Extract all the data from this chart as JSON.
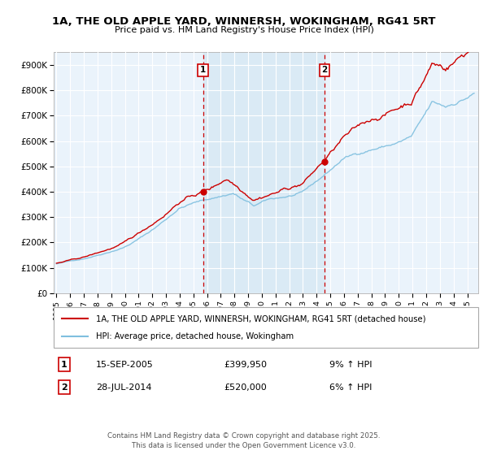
{
  "title": "1A, THE OLD APPLE YARD, WINNERSH, WOKINGHAM, RG41 5RT",
  "subtitle": "Price paid vs. HM Land Registry's House Price Index (HPI)",
  "legend_line1": "1A, THE OLD APPLE YARD, WINNERSH, WOKINGHAM, RG41 5RT (detached house)",
  "legend_line2": "HPI: Average price, detached house, Wokingham",
  "sale1_date": "15-SEP-2005",
  "sale1_price": 399950,
  "sale1_label": "9% ↑ HPI",
  "sale2_date": "28-JUL-2014",
  "sale2_price": 520000,
  "sale2_label": "6% ↑ HPI",
  "sale1_x": 2005.71,
  "sale2_x": 2014.57,
  "yticks": [
    0,
    100000,
    200000,
    300000,
    400000,
    500000,
    600000,
    700000,
    800000,
    900000
  ],
  "ytick_labels": [
    "£0",
    "£100K",
    "£200K",
    "£300K",
    "£400K",
    "£500K",
    "£600K",
    "£700K",
    "£800K",
    "£900K"
  ],
  "xmin": 1994.8,
  "xmax": 2025.8,
  "ymin": 0,
  "ymax": 950000,
  "hpi_color": "#7fbfdf",
  "price_color": "#cc0000",
  "marker_color": "#cc0000",
  "vline_color": "#cc0000",
  "shade_color": "#daeaf5",
  "background_color": "#eaf3fb",
  "grid_color": "#ffffff",
  "footnote": "Contains HM Land Registry data © Crown copyright and database right 2025.\nThis data is licensed under the Open Government Licence v3.0.",
  "xticks": [
    1995,
    1996,
    1997,
    1998,
    1999,
    2000,
    2001,
    2002,
    2003,
    2004,
    2005,
    2006,
    2007,
    2008,
    2009,
    2010,
    2011,
    2012,
    2013,
    2014,
    2015,
    2016,
    2017,
    2018,
    2019,
    2020,
    2021,
    2022,
    2023,
    2024,
    2025
  ]
}
